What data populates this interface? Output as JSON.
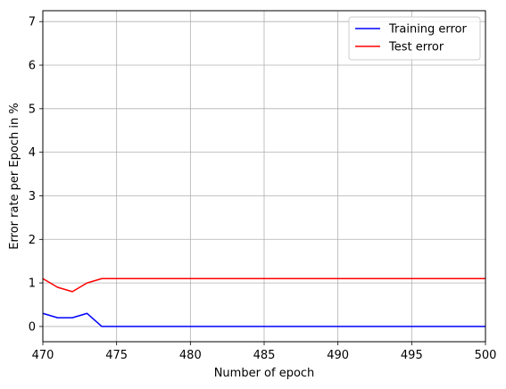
{
  "chart_data": {
    "type": "line",
    "title": "",
    "xlabel": "Number of epoch",
    "ylabel": "Error rate per Epoch in %",
    "xlim": [
      470,
      500
    ],
    "ylim": [
      -0.35,
      7.25
    ],
    "xticks": [
      470,
      475,
      480,
      485,
      490,
      495,
      500
    ],
    "yticks": [
      0,
      1,
      2,
      3,
      4,
      5,
      6,
      7
    ],
    "grid": true,
    "legend_position": "top-right",
    "x": [
      470,
      471,
      472,
      473,
      474,
      475,
      476,
      477,
      478,
      479,
      480,
      481,
      482,
      483,
      484,
      485,
      486,
      487,
      488,
      489,
      490,
      491,
      492,
      493,
      494,
      495,
      496,
      497,
      498,
      499,
      500
    ],
    "series": [
      {
        "name": "Training error",
        "color": "#0000ff",
        "values": [
          0.3,
          0.2,
          0.2,
          0.3,
          0.0,
          0.0,
          0.0,
          0.0,
          0.0,
          0.0,
          0.0,
          0.0,
          0.0,
          0.0,
          0.0,
          0.0,
          0.0,
          0.0,
          0.0,
          0.0,
          0.0,
          0.0,
          0.0,
          0.0,
          0.0,
          0.0,
          0.0,
          0.0,
          0.0,
          0.0,
          0.0
        ]
      },
      {
        "name": "Test error",
        "color": "#ff0000",
        "values": [
          1.1,
          0.9,
          0.8,
          1.0,
          1.1,
          1.1,
          1.1,
          1.1,
          1.1,
          1.1,
          1.1,
          1.1,
          1.1,
          1.1,
          1.1,
          1.1,
          1.1,
          1.1,
          1.1,
          1.1,
          1.1,
          1.1,
          1.1,
          1.1,
          1.1,
          1.1,
          1.1,
          1.1,
          1.1,
          1.1,
          1.1
        ]
      }
    ]
  }
}
